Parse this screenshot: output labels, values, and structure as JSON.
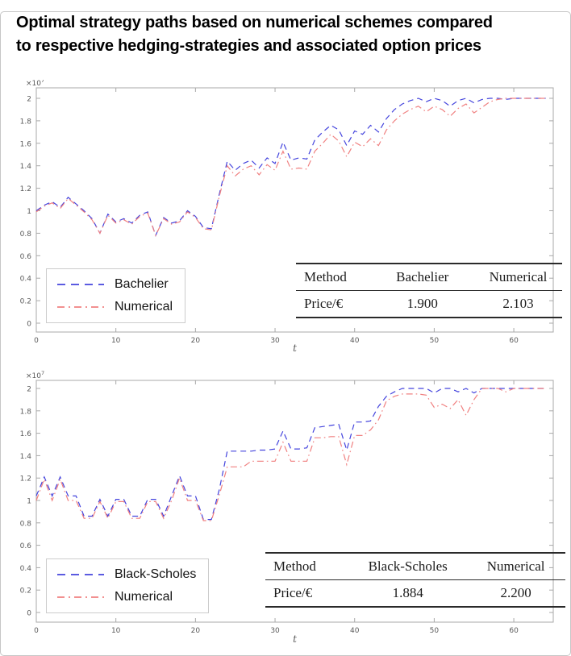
{
  "title_lines": [
    "Optimal strategy paths based on numerical schemes compared",
    "to respective hedging-strategies and associated option prices"
  ],
  "colors": {
    "blue_line": "#4444dd",
    "red_line": "#f08080",
    "axis": "#a8a8a8",
    "tick_label": "#5a5a5a"
  },
  "chart_data": [
    {
      "type": "line",
      "title": "",
      "xlabel": "t",
      "ylabel": "",
      "y_scale_label": {
        "base": "×10",
        "exp": "7"
      },
      "xticks": [
        "0",
        "10",
        "20",
        "30",
        "40",
        "50",
        "60"
      ],
      "yticks": [
        "0",
        "0.2",
        "0.4",
        "0.6",
        "0.8",
        "1",
        "1.2",
        "1.4",
        "1.6",
        "1.8",
        "2"
      ],
      "xlim": [
        0,
        65
      ],
      "ylim_e7": [
        -0.08,
        2.09
      ],
      "grid": false,
      "legend": {
        "position": "lower-left",
        "items": [
          {
            "label": "Bachelier",
            "color": "#4444dd",
            "style": "dashed"
          },
          {
            "label": "Numerical",
            "color": "#f08080",
            "style": "dashdot"
          }
        ]
      },
      "x_start": 0,
      "x_step": 1,
      "series": [
        {
          "name": "Bachelier",
          "color": "#4444dd",
          "style": "dashed",
          "values_e7": [
            1.0,
            1.05,
            1.08,
            1.03,
            1.12,
            1.06,
            1.0,
            0.93,
            0.8,
            0.97,
            0.9,
            0.93,
            0.89,
            0.96,
            0.99,
            0.78,
            0.94,
            0.89,
            0.91,
            1.0,
            0.95,
            0.85,
            0.84,
            1.15,
            1.44,
            1.36,
            1.42,
            1.45,
            1.38,
            1.47,
            1.42,
            1.61,
            1.45,
            1.47,
            1.46,
            1.63,
            1.7,
            1.76,
            1.72,
            1.58,
            1.71,
            1.68,
            1.76,
            1.7,
            1.82,
            1.9,
            1.95,
            1.98,
            2.0,
            1.97,
            2.0,
            1.98,
            1.93,
            1.98,
            2.0,
            1.96,
            1.99,
            2.0,
            2.0,
            1.99,
            2.0,
            2.0,
            2.0,
            2.0,
            2.0
          ]
        },
        {
          "name": "Numerical",
          "color": "#f08080",
          "style": "dashdot",
          "values_e7": [
            0.99,
            1.04,
            1.07,
            1.02,
            1.11,
            1.05,
            0.99,
            0.92,
            0.8,
            0.96,
            0.89,
            0.92,
            0.88,
            0.95,
            0.98,
            0.78,
            0.93,
            0.88,
            0.9,
            0.99,
            0.94,
            0.84,
            0.83,
            1.13,
            1.4,
            1.31,
            1.37,
            1.4,
            1.32,
            1.41,
            1.36,
            1.53,
            1.37,
            1.38,
            1.37,
            1.53,
            1.6,
            1.68,
            1.62,
            1.48,
            1.61,
            1.57,
            1.64,
            1.58,
            1.72,
            1.8,
            1.86,
            1.9,
            1.93,
            1.88,
            1.93,
            1.9,
            1.84,
            1.91,
            1.95,
            1.87,
            1.92,
            1.97,
            1.99,
            2.0,
            2.0,
            2.0,
            2.0,
            2.0,
            2.0
          ]
        }
      ],
      "table": {
        "headers": [
          "Method",
          "Bachelier",
          "Numerical"
        ],
        "rows": [
          [
            "Price/€",
            "1.900",
            "2.103"
          ]
        ]
      }
    },
    {
      "type": "line",
      "title": "",
      "xlabel": "t",
      "ylabel": "",
      "y_scale_label": {
        "base": "×10",
        "exp": "7"
      },
      "xticks": [
        "0",
        "10",
        "20",
        "30",
        "40",
        "50",
        "60"
      ],
      "yticks": [
        "0",
        "0.2",
        "0.4",
        "0.6",
        "0.8",
        "1",
        "1.2",
        "1.4",
        "1.6",
        "1.8",
        "2"
      ],
      "xlim": [
        0,
        65
      ],
      "ylim_e7": [
        -0.09,
        2.07
      ],
      "grid": false,
      "legend": {
        "position": "lower-left",
        "items": [
          {
            "label": "Black-Scholes",
            "color": "#4444dd",
            "style": "dashed"
          },
          {
            "label": "Numerical",
            "color": "#f08080",
            "style": "dashdot"
          }
        ]
      },
      "x_start": 0,
      "x_step": 1,
      "series": [
        {
          "name": "Black-Scholes",
          "color": "#4444dd",
          "style": "dashed",
          "values_e7": [
            1.04,
            1.21,
            1.04,
            1.21,
            1.04,
            1.04,
            0.86,
            0.86,
            1.01,
            0.86,
            1.01,
            1.01,
            0.86,
            0.86,
            1.01,
            1.01,
            0.86,
            1.04,
            1.22,
            1.04,
            1.04,
            0.83,
            0.83,
            1.1,
            1.44,
            1.44,
            1.44,
            1.44,
            1.45,
            1.45,
            1.46,
            1.62,
            1.46,
            1.46,
            1.47,
            1.65,
            1.66,
            1.67,
            1.68,
            1.45,
            1.7,
            1.7,
            1.71,
            1.84,
            1.93,
            1.97,
            2.0,
            2.0,
            2.0,
            2.0,
            1.96,
            2.0,
            2.0,
            1.97,
            2.0,
            1.96,
            2.0,
            2.0,
            2.0,
            2.0,
            2.0,
            2.0,
            2.0,
            2.0,
            2.0
          ]
        },
        {
          "name": "Numerical",
          "color": "#f08080",
          "style": "dashdot",
          "values_e7": [
            1.0,
            1.19,
            1.0,
            1.19,
            1.0,
            1.0,
            0.84,
            0.84,
            0.99,
            0.84,
            0.99,
            0.99,
            0.84,
            0.84,
            0.99,
            0.99,
            0.84,
            1.0,
            1.2,
            1.0,
            1.0,
            0.82,
            0.82,
            1.05,
            1.3,
            1.3,
            1.3,
            1.35,
            1.35,
            1.35,
            1.35,
            1.52,
            1.35,
            1.35,
            1.35,
            1.56,
            1.56,
            1.57,
            1.57,
            1.32,
            1.58,
            1.58,
            1.63,
            1.72,
            1.89,
            1.93,
            1.95,
            1.95,
            1.95,
            1.94,
            1.83,
            1.86,
            1.82,
            1.9,
            1.76,
            1.9,
            2.0,
            2.0,
            2.0,
            1.97,
            2.0,
            2.0,
            2.0,
            2.0,
            2.0
          ]
        }
      ],
      "table": {
        "headers": [
          "Method",
          "Black-Scholes",
          "Numerical"
        ],
        "rows": [
          [
            "Price/€",
            "1.884",
            "2.200"
          ]
        ]
      }
    }
  ]
}
